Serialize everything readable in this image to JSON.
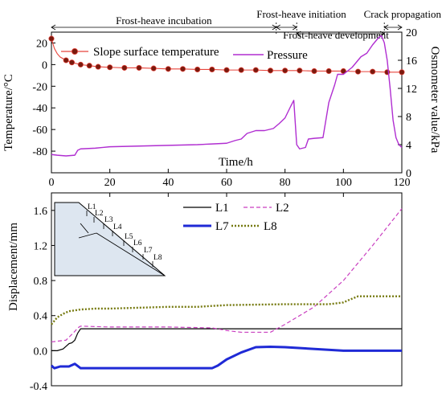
{
  "chart_data": [
    {
      "type": "line",
      "xlabel": "Time/h",
      "ylabel_left": "Temperature/°C",
      "ylabel_right": "Osmometer value/kPa",
      "xlim": [
        0,
        120
      ],
      "ylim_left": [
        -100,
        30
      ],
      "ylim_right": [
        0,
        20
      ],
      "xticks": [
        0,
        20,
        40,
        60,
        80,
        100,
        120
      ],
      "yticks_left": [
        20,
        0,
        -20,
        -40,
        -60,
        -80
      ],
      "yticks_right": [
        0,
        4,
        8,
        12,
        16,
        20
      ],
      "grid": false,
      "legend_position": "top-center",
      "phases": [
        {
          "label": "Frost-heave incubation",
          "from": 0,
          "to": 77
        },
        {
          "label": "Frost-heave initiation",
          "from": 77,
          "to": 84
        },
        {
          "label": "Frost-heave development",
          "from": 84,
          "to": 114
        },
        {
          "label": "Crack propagation",
          "from": 114,
          "to": 120
        }
      ],
      "series": [
        {
          "name": "Slope surface temperature",
          "axis": "left",
          "color": "#e8453c",
          "marker_color": "#7a1a0e",
          "x": [
            0,
            1,
            2,
            3,
            5,
            7,
            10,
            13,
            16,
            20,
            25,
            30,
            35,
            40,
            45,
            50,
            55,
            60,
            65,
            70,
            75,
            80,
            85,
            90,
            95,
            100,
            105,
            110,
            115,
            120
          ],
          "y": [
            24,
            15,
            10,
            7,
            4,
            2,
            0,
            -1,
            -2,
            -2.5,
            -3,
            -3,
            -3.5,
            -4,
            -4,
            -4.5,
            -4.5,
            -5,
            -5,
            -5,
            -5.5,
            -5.5,
            -5.5,
            -6,
            -6,
            -6,
            -6.5,
            -6.5,
            -7,
            -7
          ]
        },
        {
          "name": "Pressure",
          "axis": "right",
          "color": "#b02ed1",
          "x": [
            0,
            2,
            5,
            8,
            9,
            10,
            15,
            20,
            30,
            40,
            50,
            55,
            60,
            63,
            65,
            67,
            70,
            73,
            76,
            78,
            80,
            82,
            83,
            84,
            85,
            87,
            88,
            90,
            93,
            95,
            97,
            98,
            100,
            103,
            106,
            108,
            110,
            112,
            113,
            114,
            115,
            116,
            117,
            118,
            119,
            120
          ],
          "y": [
            2.6,
            2.5,
            2.4,
            2.5,
            3.2,
            3.4,
            3.5,
            3.7,
            3.8,
            3.9,
            4.0,
            4.1,
            4.2,
            4.6,
            4.8,
            5.6,
            6.0,
            6.0,
            6.3,
            7.0,
            7.8,
            9.5,
            10.3,
            4.0,
            3.4,
            3.6,
            4.8,
            4.9,
            5.0,
            10.0,
            12.5,
            14.0,
            14.0,
            15.0,
            16.5,
            17.0,
            18.2,
            19.2,
            19.5,
            18.5,
            16.0,
            12.0,
            7.5,
            5.0,
            4.0,
            3.6
          ]
        }
      ]
    },
    {
      "type": "line",
      "xlabel": "",
      "ylabel": "Displacement/mm",
      "xlim": [
        0,
        120
      ],
      "ylim": [
        -0.4,
        1.8
      ],
      "yticks": [
        -0.4,
        0.0,
        0.4,
        0.8,
        1.2,
        1.6
      ],
      "grid": false,
      "legend_position": "top-center",
      "inset_labels": [
        "L1",
        "L2",
        "L3",
        "L4",
        "L5",
        "L6",
        "L7",
        "L8"
      ],
      "series": [
        {
          "name": "L1",
          "color": "#000000",
          "style": "solid",
          "x": [
            0,
            2,
            4,
            5,
            6,
            7,
            8,
            9,
            10,
            15,
            20,
            40,
            60,
            70,
            80,
            100,
            120
          ],
          "y": [
            0.0,
            0.0,
            0.02,
            0.05,
            0.08,
            0.09,
            0.12,
            0.2,
            0.25,
            0.25,
            0.25,
            0.25,
            0.25,
            0.25,
            0.25,
            0.25,
            0.25
          ]
        },
        {
          "name": "L2",
          "color": "#c93fc0",
          "style": "dashed",
          "x": [
            0,
            5,
            8,
            9,
            10,
            20,
            40,
            55,
            60,
            65,
            70,
            75,
            80,
            90,
            100,
            110,
            120
          ],
          "y": [
            0.1,
            0.12,
            0.22,
            0.26,
            0.28,
            0.27,
            0.27,
            0.26,
            0.23,
            0.21,
            0.21,
            0.21,
            0.3,
            0.5,
            0.8,
            1.2,
            1.62
          ]
        },
        {
          "name": "L7",
          "color": "#1f2ad6",
          "style": "solid",
          "x": [
            0,
            1,
            3,
            6,
            8,
            10,
            20,
            40,
            55,
            57,
            60,
            65,
            70,
            75,
            80,
            100,
            120
          ],
          "y": [
            -0.17,
            -0.2,
            -0.18,
            -0.18,
            -0.15,
            -0.2,
            -0.2,
            -0.2,
            -0.2,
            -0.17,
            -0.1,
            -0.02,
            0.04,
            0.045,
            0.04,
            0.0,
            0.0
          ]
        },
        {
          "name": "L8",
          "color": "#767a10",
          "style": "dotted",
          "x": [
            0,
            2,
            4,
            6,
            8,
            10,
            15,
            20,
            40,
            50,
            60,
            80,
            90,
            95,
            100,
            102,
            105,
            110,
            120
          ],
          "y": [
            0.3,
            0.38,
            0.42,
            0.45,
            0.46,
            0.47,
            0.48,
            0.48,
            0.5,
            0.5,
            0.52,
            0.53,
            0.53,
            0.53,
            0.55,
            0.58,
            0.62,
            0.62,
            0.62
          ]
        }
      ]
    }
  ]
}
